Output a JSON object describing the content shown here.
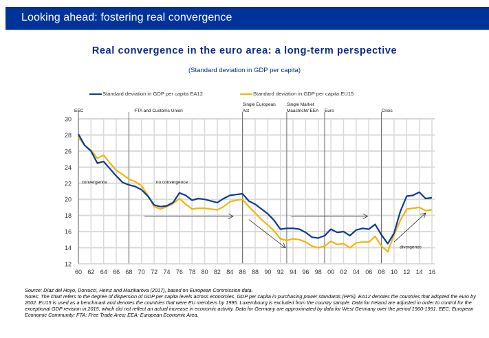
{
  "banner": {
    "title": "Looking ahead: fostering real convergence"
  },
  "colors": {
    "banner_bg": "#003399",
    "title_text": "#0a2a8c",
    "ea12": "#0a3a9a",
    "eu15": "#f5b400"
  },
  "chart_data": {
    "type": "line",
    "title": "Real convergence in the euro area: a long-term perspective",
    "subtitle": "(Standard deviation in GDP per capita)",
    "xlabel": "",
    "ylabel": "",
    "ylim": [
      12,
      30
    ],
    "yticks": [
      12,
      14,
      16,
      18,
      20,
      22,
      24,
      26,
      28,
      30
    ],
    "xlim": [
      1960,
      2016
    ],
    "xticks": [
      "60",
      "62",
      "64",
      "66",
      "68",
      "70",
      "72",
      "74",
      "76",
      "78",
      "80",
      "82",
      "84",
      "86",
      "88",
      "90",
      "92",
      "94",
      "96",
      "98",
      "00",
      "02",
      "04",
      "06",
      "08",
      "10",
      "12",
      "14",
      "16"
    ],
    "grid": true,
    "legend_position": "top",
    "x": [
      1960,
      1961,
      1962,
      1963,
      1964,
      1965,
      1966,
      1967,
      1968,
      1969,
      1970,
      1971,
      1972,
      1973,
      1974,
      1975,
      1976,
      1977,
      1978,
      1979,
      1980,
      1981,
      1982,
      1983,
      1984,
      1985,
      1986,
      1987,
      1988,
      1989,
      1990,
      1991,
      1992,
      1993,
      1994,
      1995,
      1996,
      1997,
      1998,
      1999,
      2000,
      2001,
      2002,
      2003,
      2004,
      2005,
      2006,
      2007,
      2008,
      2009,
      2010,
      2011,
      2012,
      2013,
      2014,
      2015,
      2016
    ],
    "series": [
      {
        "name": "Standard deviation in GDP per capita EA12",
        "values": [
          28.1,
          26.7,
          26.0,
          24.5,
          24.7,
          23.8,
          22.9,
          22.1,
          21.8,
          21.6,
          21.2,
          20.4,
          19.3,
          19.1,
          19.2,
          19.6,
          20.8,
          20.5,
          19.9,
          20.1,
          20.0,
          19.8,
          19.6,
          20.1,
          20.5,
          20.6,
          20.7,
          19.8,
          19.4,
          18.8,
          18.2,
          17.4,
          16.3,
          16.4,
          16.4,
          16.3,
          15.9,
          15.3,
          15.2,
          15.5,
          16.3,
          15.9,
          16.0,
          15.5,
          16.2,
          16.4,
          16.3,
          16.9,
          15.6,
          14.5,
          15.8,
          18.5,
          20.4,
          20.5,
          20.9,
          20.1,
          20.2
        ]
      },
      {
        "name": "Standard deviation in GDP per capita EU15",
        "values": [
          27.7,
          26.7,
          26.1,
          25.1,
          25.5,
          24.5,
          23.6,
          23.1,
          22.5,
          22.2,
          21.7,
          20.5,
          19.1,
          18.8,
          19.1,
          19.5,
          20.1,
          19.4,
          18.8,
          18.9,
          18.9,
          18.8,
          18.7,
          19.1,
          19.7,
          19.9,
          20.0,
          19.1,
          18.3,
          17.5,
          16.8,
          16.1,
          15.1,
          14.9,
          15.1,
          15.0,
          14.7,
          14.2,
          14.0,
          14.2,
          14.8,
          14.4,
          14.5,
          14.0,
          14.6,
          14.7,
          14.7,
          15.4,
          14.2,
          13.5,
          15.6,
          17.4,
          18.8,
          18.9,
          19.0,
          18.6,
          18.7
        ]
      }
    ],
    "period_lines": [
      1960,
      1968,
      1986,
      1993,
      1999,
      2008
    ],
    "event_labels": [
      {
        "year": 1960,
        "lines": [
          "EEC"
        ]
      },
      {
        "year": 1968,
        "lines": [
          "FTA and Customs Union"
        ]
      },
      {
        "year": 1986,
        "lines": [
          "Single European",
          "Act"
        ]
      },
      {
        "year": 1993,
        "lines": [
          "Single Market",
          "Maastricht/ EEA"
        ]
      },
      {
        "year": 1999,
        "lines": [
          "Euro"
        ]
      },
      {
        "year": 2008,
        "lines": [
          "Crisis"
        ]
      }
    ],
    "annotations": [
      {
        "text": "convergence",
        "x": 1960.5,
        "y": 22.0
      },
      {
        "text": "no convergence",
        "x": 1972.3,
        "y": 22.0
      },
      {
        "text": "divergence",
        "x": 2010.9,
        "y": 13.9
      }
    ],
    "arrows": [
      {
        "from": [
          1970.5,
          17.9
        ],
        "to": [
          1984.5,
          17.9
        ]
      },
      {
        "from": [
          1987.0,
          17.5
        ],
        "to": [
          1992.8,
          14.0
        ]
      },
      {
        "from": [
          1993.7,
          17.9
        ],
        "to": [
          2005.8,
          17.9
        ]
      },
      {
        "from": [
          2010.0,
          14.7
        ],
        "to": [
          2015.0,
          18.3
        ]
      }
    ]
  },
  "footnotes": {
    "source": "Source: Díaz del Hoyo, Dorrucci, Heinz and Muzikarova (2017), based on European Commission data.",
    "notes": "Notes: The chart refers to the degree of dispersion of GDP per capita levels across economies. GDP per capita in purchasing power standards (PPS). EA12 denotes the countries that adopted the euro by 2002. EU15 is used as a benchmark and denotes the countries that were EU members by 1995. Luxembourg is excluded from the country sample. Data for Ireland are adjusted in order to control for the exceptional GDP revision in 2015, which did not reflect an actual increase in economic activity. Data for Germany are approximated by data for West Germany over the period 1960-1991. EEC: European Economic Community; FTA: Free Trade Area; EEA: European Economic Area."
  }
}
